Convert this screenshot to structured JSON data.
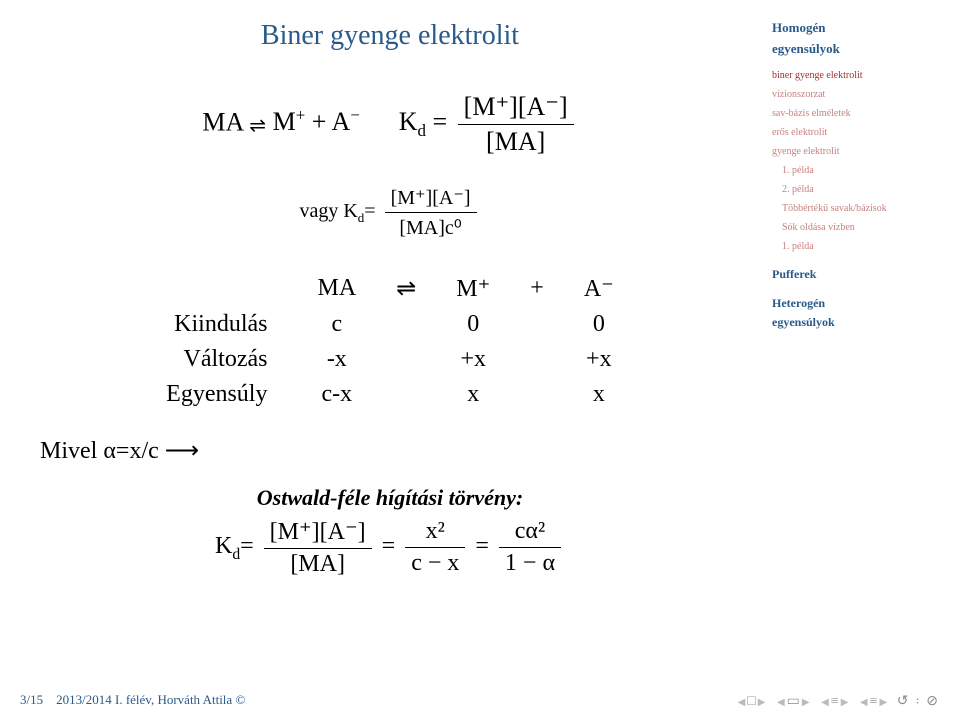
{
  "title": "Biner gyenge elektrolit",
  "eq1": {
    "lhs": "MA",
    "arrow": "⇌",
    "rhs": "M",
    "rhs_sup1": "+",
    "plus": " + A",
    "rhs_sup2": "−",
    "kd": "K",
    "kd_sub": "d",
    "equals": " = ",
    "frac_num": "[M⁺][A⁻]",
    "frac_den": "[MA]"
  },
  "eq2": {
    "prefix": "vagy K",
    "sub": "d",
    "equals": "=",
    "frac_num": "[M⁺][A⁻]",
    "frac_den": "[MA]c⁰"
  },
  "ice": {
    "header": [
      "",
      "MA",
      "⇌",
      "M⁺",
      "+",
      "A⁻"
    ],
    "rows": [
      [
        "Kiindulás",
        "c",
        "",
        "0",
        "",
        "0"
      ],
      [
        "Változás",
        "-x",
        "",
        "+x",
        "",
        "+x"
      ],
      [
        "Egyensúly",
        "c-x",
        "",
        "x",
        "",
        "x"
      ]
    ]
  },
  "alpha_line": "Mivel α=x/c ⟶",
  "ostwald": {
    "title": "Ostwald-féle hígítási törvény:",
    "k_lhs": "K",
    "k_sub": "d",
    "eq": "=",
    "frac1_num": "[M⁺][A⁻]",
    "frac1_den": "[MA]",
    "frac2_num": "x²",
    "frac2_den": "c − x",
    "frac3_num": "cα²",
    "frac3_den": "1 − α"
  },
  "sidebar": {
    "title": "Homogén\negyensúlyok",
    "items": [
      {
        "label": "biner gyenge elektrolit",
        "active": true
      },
      {
        "label": "vízionszorzat"
      },
      {
        "label": "sav-bázis elméletek"
      },
      {
        "label": "erős elektrolit"
      },
      {
        "label": "gyenge elektrolit"
      },
      {
        "label": "1. példa",
        "indent": true
      },
      {
        "label": "2. példa",
        "indent": true
      },
      {
        "label": "Többértékű savak/bázisok",
        "indent": true
      },
      {
        "label": "Sók oldása vízben",
        "indent": true
      },
      {
        "label": "1. példa",
        "indent": true
      }
    ],
    "section2": "Pufferek",
    "section3": "Heterogén\negyensúlyok"
  },
  "footer": {
    "page": "3/15",
    "text": "2013/2014 I. félév, Horváth Attila ©"
  },
  "colors": {
    "title_color": "#2a5a8a",
    "sidebar_link": "#c88080",
    "sidebar_active": "#a03030"
  }
}
